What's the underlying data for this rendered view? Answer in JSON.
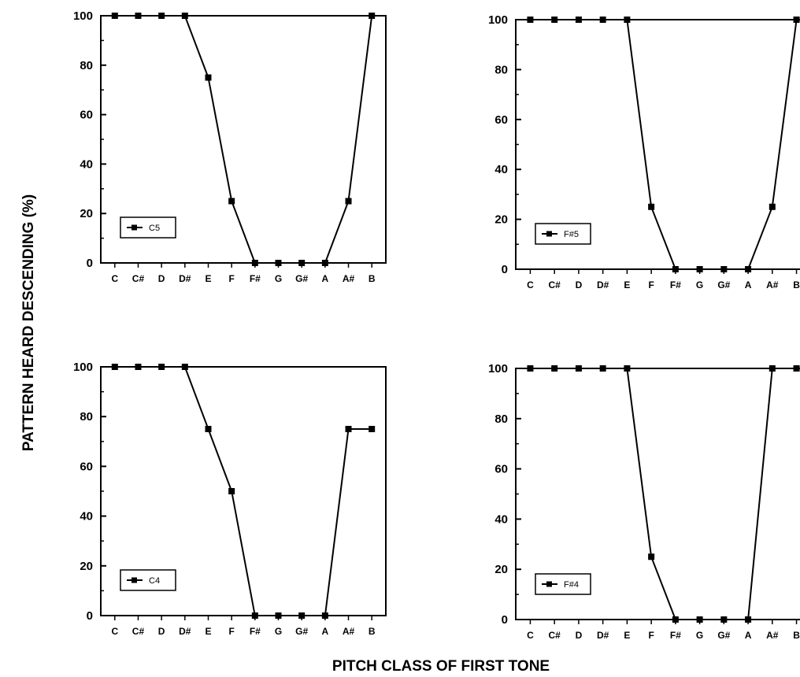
{
  "figure": {
    "ylabel": "PATTERN HEARD DESCENDING (%)",
    "xlabel": "PITCH CLASS OF FIRST TONE"
  },
  "chart_data": [
    {
      "type": "line",
      "categories": [
        "C",
        "C#",
        "D",
        "D#",
        "E",
        "F",
        "F#",
        "G",
        "G#",
        "A",
        "A#",
        "B"
      ],
      "series": [
        {
          "name": "C5",
          "values": [
            100,
            100,
            100,
            100,
            75,
            25,
            0,
            0,
            0,
            0,
            25,
            100
          ]
        }
      ],
      "ylim": [
        0,
        100
      ],
      "yticks": [
        0,
        20,
        40,
        60,
        80,
        100
      ],
      "legend_position": "bottom-left",
      "grid": false
    },
    {
      "type": "line",
      "categories": [
        "C",
        "C#",
        "D",
        "D#",
        "E",
        "F",
        "F#",
        "G",
        "G#",
        "A",
        "A#",
        "B"
      ],
      "series": [
        {
          "name": "F#5",
          "values": [
            100,
            100,
            100,
            100,
            100,
            25,
            0,
            0,
            0,
            0,
            25,
            100
          ]
        }
      ],
      "ylim": [
        0,
        100
      ],
      "yticks": [
        0,
        20,
        40,
        60,
        80,
        100
      ],
      "legend_position": "bottom-left",
      "grid": false
    },
    {
      "type": "line",
      "categories": [
        "C",
        "C#",
        "D",
        "D#",
        "E",
        "F",
        "F#",
        "G",
        "G#",
        "A",
        "A#",
        "B"
      ],
      "series": [
        {
          "name": "C4",
          "values": [
            100,
            100,
            100,
            100,
            75,
            50,
            0,
            0,
            0,
            0,
            75,
            75
          ]
        }
      ],
      "ylim": [
        0,
        100
      ],
      "yticks": [
        0,
        20,
        40,
        60,
        80,
        100
      ],
      "legend_position": "bottom-left",
      "grid": false
    },
    {
      "type": "line",
      "categories": [
        "C",
        "C#",
        "D",
        "D#",
        "E",
        "F",
        "F#",
        "G",
        "G#",
        "A",
        "A#",
        "B"
      ],
      "series": [
        {
          "name": "F#4",
          "values": [
            100,
            100,
            100,
            100,
            100,
            25,
            0,
            0,
            0,
            0,
            100,
            100
          ]
        }
      ],
      "ylim": [
        0,
        100
      ],
      "yticks": [
        0,
        20,
        40,
        60,
        80,
        100
      ],
      "legend_position": "bottom-left",
      "grid": false
    }
  ]
}
